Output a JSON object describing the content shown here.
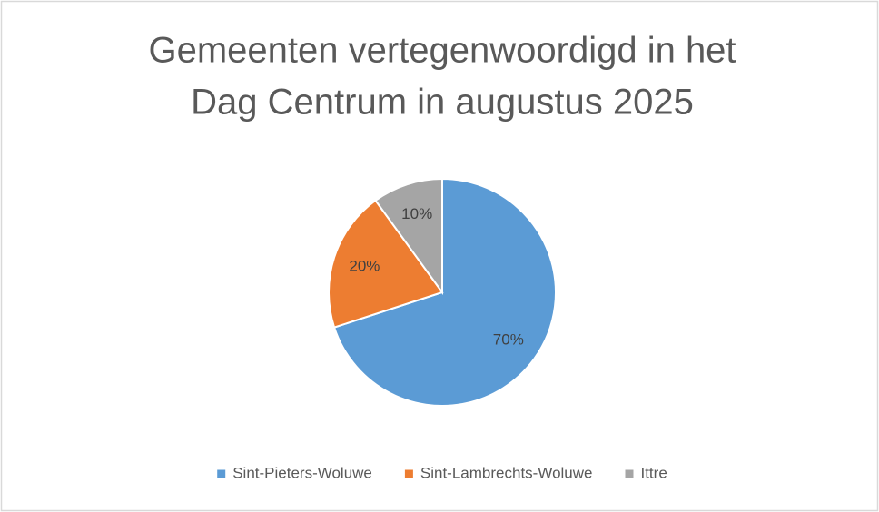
{
  "chart_data": {
    "type": "pie",
    "title": [
      "Gemeenten vertegenwoordigd in het",
      "Dag Centrum in augustus 2025"
    ],
    "categories": [
      "Sint-Pieters-Woluwe",
      "Sint-Lambrechts-Woluwe",
      "Ittre"
    ],
    "values": [
      70,
      20,
      10
    ],
    "value_labels": [
      "70%",
      "20%",
      "10%"
    ],
    "colors": [
      "#5b9bd5",
      "#ed7d31",
      "#a5a5a5"
    ],
    "legend": "bottom"
  }
}
